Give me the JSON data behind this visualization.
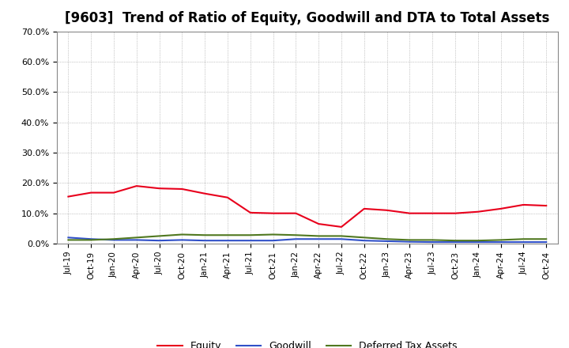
{
  "title": "[9603]  Trend of Ratio of Equity, Goodwill and DTA to Total Assets",
  "x_labels": [
    "Jul-19",
    "Oct-19",
    "Jan-20",
    "Apr-20",
    "Jul-20",
    "Oct-20",
    "Jan-21",
    "Apr-21",
    "Jul-21",
    "Oct-21",
    "Jan-22",
    "Apr-22",
    "Jul-22",
    "Oct-22",
    "Jan-23",
    "Apr-23",
    "Jul-23",
    "Oct-23",
    "Jan-24",
    "Apr-24",
    "Jul-24",
    "Oct-24"
  ],
  "equity": [
    15.5,
    16.8,
    16.8,
    19.0,
    18.2,
    18.0,
    16.5,
    15.2,
    10.2,
    10.0,
    10.0,
    6.5,
    5.5,
    11.5,
    11.0,
    10.0,
    10.0,
    10.0,
    10.5,
    11.5,
    12.8,
    12.5
  ],
  "goodwill": [
    2.0,
    1.5,
    1.2,
    1.2,
    1.0,
    1.2,
    1.0,
    1.0,
    1.0,
    1.0,
    1.5,
    1.5,
    1.5,
    1.0,
    0.8,
    0.6,
    0.5,
    0.5,
    0.5,
    0.5,
    0.5,
    0.5
  ],
  "dta": [
    1.2,
    1.2,
    1.5,
    2.0,
    2.5,
    3.0,
    2.8,
    2.8,
    2.8,
    3.0,
    2.8,
    2.5,
    2.5,
    2.0,
    1.5,
    1.2,
    1.2,
    1.0,
    1.0,
    1.2,
    1.5,
    1.5
  ],
  "equity_color": "#e8001c",
  "goodwill_color": "#3050c8",
  "dta_color": "#507820",
  "ylim": [
    0,
    70
  ],
  "yticks": [
    0,
    10,
    20,
    30,
    40,
    50,
    60,
    70
  ],
  "background_color": "#ffffff",
  "plot_bg_color": "#ffffff",
  "grid_color": "#999999",
  "title_fontsize": 12,
  "legend_labels": [
    "Equity",
    "Goodwill",
    "Deferred Tax Assets"
  ]
}
